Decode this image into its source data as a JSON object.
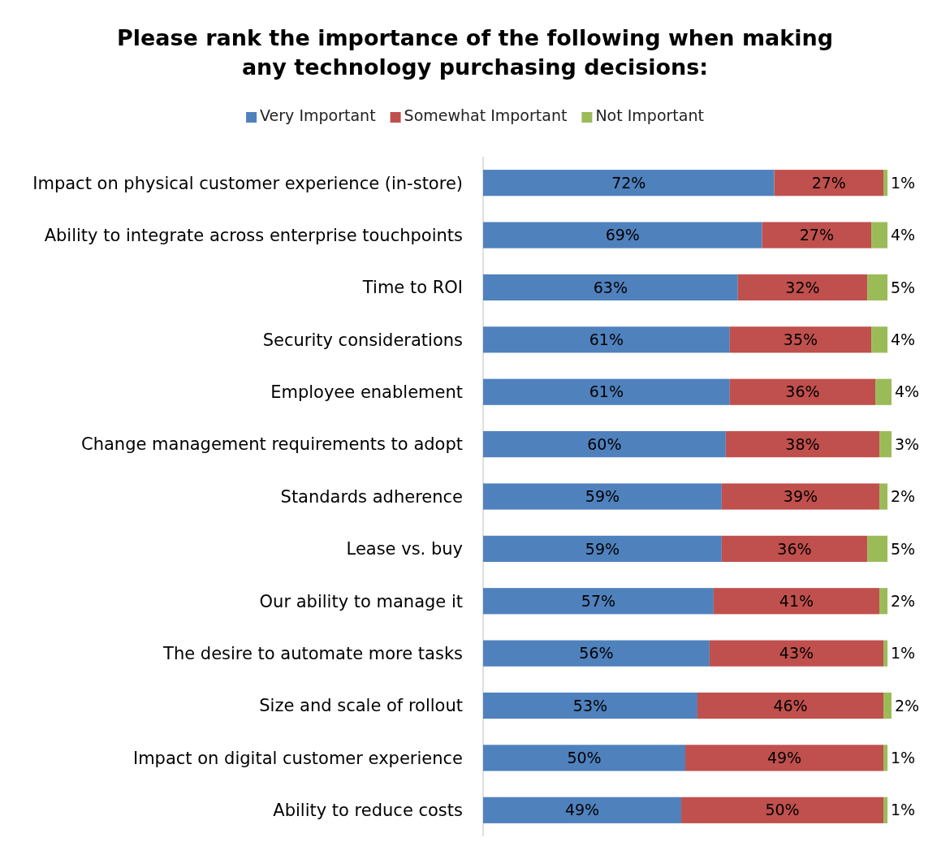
{
  "chart_data": {
    "type": "bar",
    "orientation": "horizontal",
    "stacked": true,
    "title": "Please rank the importance of the following when making\nany technology purchasing decisions:",
    "categories": [
      "Impact on physical customer experience (in-store)",
      "Ability to integrate across enterprise touchpoints",
      "Time to ROI",
      "Security considerations",
      "Employee enablement",
      "Change management requirements to adopt",
      "Standards adherence",
      "Lease vs. buy",
      "Our ability to manage it",
      "The desire to automate more tasks",
      "Size and scale of rollout",
      "Impact on digital customer experience",
      "Ability to reduce costs"
    ],
    "series": [
      {
        "name": "Very Important",
        "color": "#4f81bd",
        "values": [
          72,
          69,
          63,
          61,
          61,
          60,
          59,
          59,
          57,
          56,
          53,
          50,
          49
        ],
        "value_labels": [
          "72%",
          "69%",
          "63%",
          "61%",
          "61%",
          "60%",
          "59%",
          "59%",
          "57%",
          "56%",
          "53%",
          "50%",
          "49%"
        ]
      },
      {
        "name": "Somewhat Important",
        "color": "#c0504d",
        "values": [
          27,
          27,
          32,
          35,
          36,
          38,
          39,
          36,
          41,
          43,
          46,
          49,
          50
        ],
        "value_labels": [
          "27%",
          "27%",
          "32%",
          "35%",
          "36%",
          "38%",
          "39%",
          "36%",
          "41%",
          "43%",
          "46%",
          "49%",
          "50%"
        ]
      },
      {
        "name": "Not Important",
        "color": "#9bbb59",
        "values": [
          1,
          4,
          5,
          4,
          4,
          3,
          2,
          5,
          2,
          1,
          2,
          1,
          1
        ],
        "value_labels": [
          "1%",
          "4%",
          "5%",
          "4%",
          "4%",
          "3%",
          "2%",
          "5%",
          "2%",
          "1%",
          "2%",
          "1%",
          "1%"
        ]
      }
    ],
    "legend": "top"
  }
}
